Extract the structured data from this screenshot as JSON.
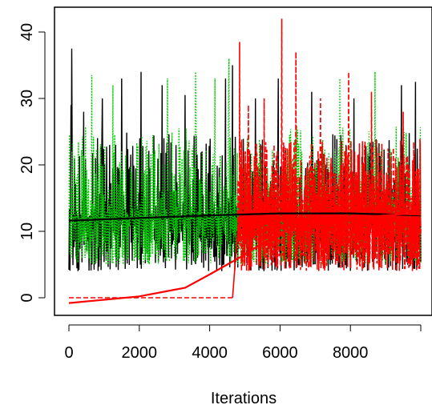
{
  "chart_data": {
    "type": "line",
    "title": "",
    "xlabel": "Iterations",
    "ylabel": "",
    "xlim": [
      0,
      10000
    ],
    "ylim": [
      0,
      42
    ],
    "x_ticks": [
      0,
      2000,
      4000,
      6000,
      8000
    ],
    "y_ticks": [
      0,
      10,
      20,
      30,
      40
    ],
    "grid": false,
    "legend": "none",
    "series": [
      {
        "style": "trace-solid",
        "color": "#000000",
        "iterations": [
          0,
          10000
        ],
        "typical_range": [
          4,
          25
        ],
        "spikes": [
          {
            "x": 60,
            "y": 29
          },
          {
            "x": 80,
            "y": 37.5
          },
          {
            "x": 420,
            "y": 28
          },
          {
            "x": 950,
            "y": 30
          },
          {
            "x": 1500,
            "y": 33
          },
          {
            "x": 2050,
            "y": 34
          },
          {
            "x": 2650,
            "y": 32
          },
          {
            "x": 3300,
            "y": 30.5
          },
          {
            "x": 4450,
            "y": 33
          },
          {
            "x": 4650,
            "y": 35
          },
          {
            "x": 5300,
            "y": 30
          },
          {
            "x": 5950,
            "y": 33
          },
          {
            "x": 6900,
            "y": 31
          },
          {
            "x": 8100,
            "y": 30
          },
          {
            "x": 9450,
            "y": 32
          },
          {
            "x": 9850,
            "y": 32.5
          }
        ]
      },
      {
        "style": "trace-dotted",
        "color": "#00cc00",
        "iterations": [
          0,
          10000
        ],
        "typical_range": [
          5,
          26
        ],
        "spikes": [
          {
            "x": 650,
            "y": 33.5
          },
          {
            "x": 1250,
            "y": 32
          },
          {
            "x": 2800,
            "y": 33
          },
          {
            "x": 3600,
            "y": 34
          },
          {
            "x": 4150,
            "y": 33
          },
          {
            "x": 4550,
            "y": 36
          },
          {
            "x": 7700,
            "y": 33
          },
          {
            "x": 8700,
            "y": 34
          }
        ]
      },
      {
        "style": "trace-dashed",
        "color": "#ff0000",
        "iterations": [
          4800,
          10000
        ],
        "before_start_value": 0,
        "typical_range": [
          4,
          24
        ],
        "spikes": [
          {
            "x": 4850,
            "y": 38.5
          },
          {
            "x": 5100,
            "y": 29
          },
          {
            "x": 5550,
            "y": 30
          },
          {
            "x": 6050,
            "y": 42
          },
          {
            "x": 6450,
            "y": 37
          },
          {
            "x": 7150,
            "y": 30
          },
          {
            "x": 7950,
            "y": 34
          },
          {
            "x": 8600,
            "y": 31
          },
          {
            "x": 9500,
            "y": 28
          }
        ]
      },
      {
        "style": "smooth-black",
        "color": "#000000",
        "x": [
          0,
          2000,
          4000,
          6000,
          8000,
          10000
        ],
        "y": [
          11.6,
          12.0,
          12.4,
          12.7,
          12.7,
          12.4
        ]
      },
      {
        "style": "smooth-red",
        "color": "#ff0000",
        "x": [
          0,
          1000,
          2000,
          3000,
          3300,
          4000,
          4500,
          5000,
          5500,
          6000,
          6500,
          7000,
          8000,
          9000,
          9500,
          10000
        ],
        "y": [
          -0.8,
          -0.3,
          0.2,
          1.2,
          1.5,
          3.5,
          5.0,
          6.5,
          8.2,
          9.5,
          10.8,
          11.3,
          12.0,
          12.4,
          12.6,
          12.5
        ]
      }
    ]
  }
}
